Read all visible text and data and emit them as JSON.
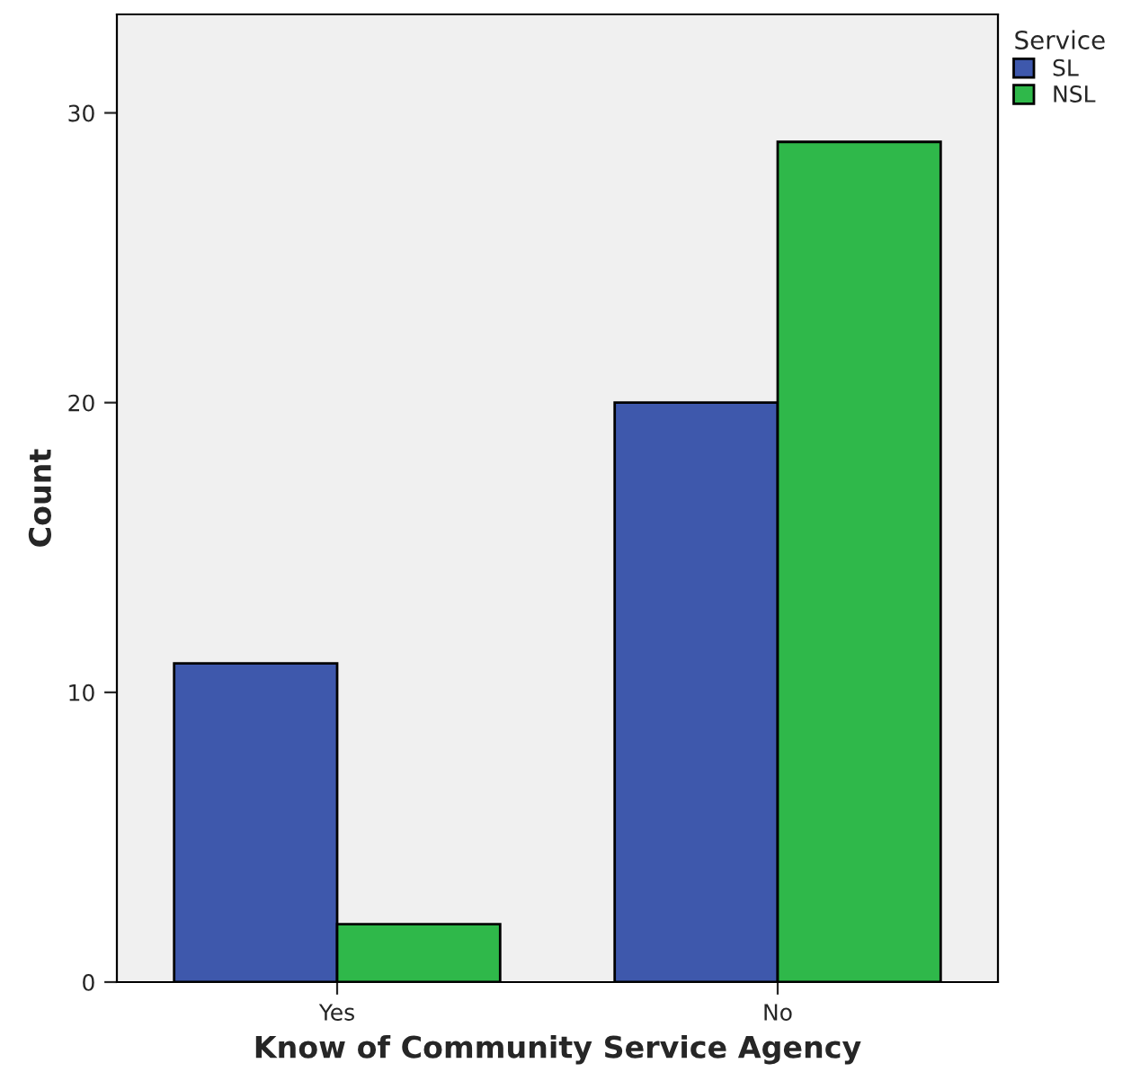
{
  "chart_data": {
    "type": "bar",
    "xlabel": "Know of Community Service Agency",
    "ylabel": "Count",
    "categories": [
      "Yes",
      "No"
    ],
    "series": [
      {
        "name": "SL",
        "color": "#3e58ac",
        "values": [
          11,
          20
        ]
      },
      {
        "name": "NSL",
        "color": "#2fb84a",
        "values": [
          2,
          29
        ]
      }
    ],
    "ylim": [
      0,
      33.4
    ],
    "yticks": [
      0,
      10,
      20,
      30
    ],
    "legend_title": "Service",
    "legend": "top right",
    "grid": false
  }
}
